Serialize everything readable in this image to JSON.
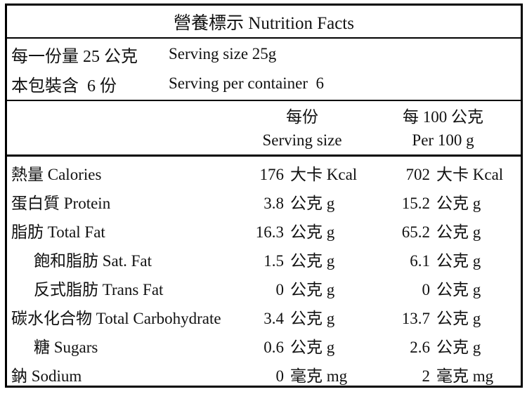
{
  "title": "營養標示 Nutrition Facts",
  "serving_info": {
    "rows": [
      {
        "zh": "每一份量 25 公克",
        "en": "Serving size 25g"
      },
      {
        "zh": "本包裝含  6 份",
        "en": "Serving per container  6"
      }
    ]
  },
  "columns": {
    "per_serving": {
      "zh": "每份",
      "en": "Serving size"
    },
    "per_100g": {
      "zh": "每 100 公克",
      "en": "Per 100 g"
    }
  },
  "nutrients": [
    {
      "label": "熱量 Calories",
      "indent": false,
      "per_serving": "176",
      "per_100g": "702",
      "unit": "大卡 Kcal"
    },
    {
      "label": "蛋白質 Protein",
      "indent": false,
      "per_serving": "3.8",
      "per_100g": "15.2",
      "unit": "公克 g"
    },
    {
      "label": "脂肪 Total Fat",
      "indent": false,
      "per_serving": "16.3",
      "per_100g": "65.2",
      "unit": "公克 g"
    },
    {
      "label": "飽和脂肪 Sat. Fat",
      "indent": true,
      "per_serving": "1.5",
      "per_100g": "6.1",
      "unit": "公克 g"
    },
    {
      "label": "反式脂肪 Trans Fat",
      "indent": true,
      "per_serving": "0",
      "per_100g": "0",
      "unit": "公克 g"
    },
    {
      "label": "碳水化合物 Total Carbohydrate",
      "indent": false,
      "per_serving": "3.4",
      "per_100g": "13.7",
      "unit": "公克 g"
    },
    {
      "label": "糖 Sugars",
      "indent": true,
      "per_serving": "0.6",
      "per_100g": "2.6",
      "unit": "公克 g"
    },
    {
      "label": "鈉 Sodium",
      "indent": false,
      "per_serving": "0",
      "per_100g": "2",
      "unit": "毫克 mg"
    }
  ],
  "colors": {
    "border": "#000000",
    "text": "#111111",
    "background": "#ffffff"
  }
}
